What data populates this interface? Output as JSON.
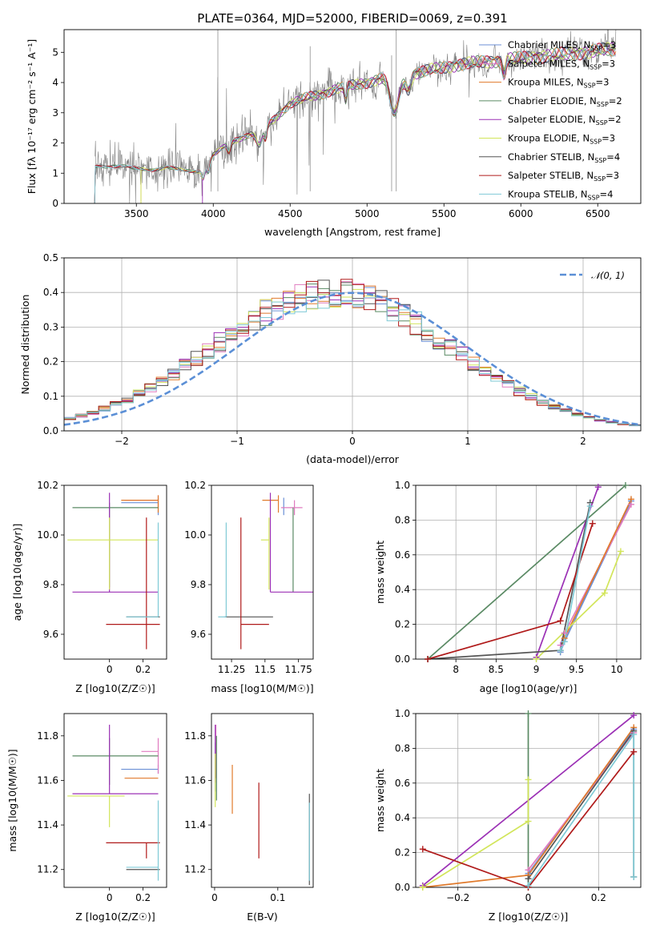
{
  "figure_title": "PLATE=0364, MJD=52000, FIBERID=0069, z=0.391",
  "colors": {
    "Chabrier MILES": "#6b8fd6",
    "Salpeter MILES": "#e07bbf",
    "Kroupa MILES": "#e07a2c",
    "Chabrier ELODIE": "#5a8a64",
    "Salpeter ELODIE": "#9b30b5",
    "Kroupa ELODIE": "#d2e55a",
    "Chabrier STELIB": "#555555",
    "Salpeter STELIB": "#b01a1a",
    "Kroupa STELIB": "#7fcad6",
    "data": "#808080",
    "gaussian": "#5b8fd6"
  },
  "chart_data": [
    {
      "type": "line",
      "title": "PLATE=0364, MJD=52000, FIBERID=0069, z=0.391",
      "xlabel": "wavelength [Angstrom, rest frame]",
      "ylabel": "Flux [fλ 10⁻¹⁷ erg cm⁻² s⁻¹ A⁻¹]",
      "xlim": [
        3030,
        6780
      ],
      "ylim": [
        0,
        5.75
      ],
      "xticks": [
        3500,
        4000,
        4500,
        5000,
        5500,
        6000,
        6500
      ],
      "yticks": [
        0,
        1,
        2,
        3,
        4,
        5
      ],
      "grid": false,
      "legend_position": "upper right",
      "legend": [
        "Chabrier MILES, N_SSP=3",
        "Salpeter MILES, N_SSP=3",
        "Kroupa MILES, N_SSP=3",
        "Chabrier ELODIE, N_SSP=2",
        "Salpeter ELODIE, N_SSP=2",
        "Kroupa ELODIE, N_SSP=3",
        "Chabrier STELIB, N_SSP=4",
        "Salpeter STELIB, N_SSP=3",
        "Kroupa STELIB, N_SSP=4"
      ],
      "model_continuum": [
        [
          3230,
          1.2
        ],
        [
          3400,
          1.25
        ],
        [
          3500,
          1.15
        ],
        [
          3600,
          1.1
        ],
        [
          3700,
          1.2
        ],
        [
          3800,
          1.1
        ],
        [
          3900,
          1.05
        ],
        [
          3950,
          1.1
        ],
        [
          4000,
          1.6
        ],
        [
          4100,
          2.0
        ],
        [
          4200,
          2.2
        ],
        [
          4300,
          2.4
        ],
        [
          4400,
          2.8
        ],
        [
          4500,
          3.3
        ],
        [
          4600,
          3.5
        ],
        [
          4700,
          3.6
        ],
        [
          4800,
          3.8
        ],
        [
          4900,
          3.9
        ],
        [
          5000,
          4.0
        ],
        [
          5100,
          4.15
        ],
        [
          5200,
          3.9
        ],
        [
          5300,
          4.3
        ],
        [
          5400,
          4.4
        ],
        [
          5500,
          4.5
        ],
        [
          5600,
          4.6
        ],
        [
          5700,
          4.65
        ],
        [
          5800,
          4.7
        ],
        [
          5900,
          4.75
        ],
        [
          6000,
          4.8
        ],
        [
          6100,
          4.85
        ],
        [
          6200,
          4.9
        ],
        [
          6300,
          4.95
        ],
        [
          6400,
          5.0
        ],
        [
          6500,
          5.05
        ],
        [
          6600,
          5.1
        ]
      ]
    },
    {
      "type": "step",
      "xlabel": "(data-model)/error",
      "ylabel": "Normed distribution",
      "xlim": [
        -2.5,
        2.5
      ],
      "ylim": [
        0,
        0.5
      ],
      "xticks": [
        -2,
        -1,
        0,
        1,
        2
      ],
      "yticks": [
        0.0,
        0.1,
        0.2,
        0.3,
        0.4,
        0.5
      ],
      "grid": true,
      "legend": [
        "𝒩(0, 1)"
      ],
      "legend_position": "upper right",
      "bin_width": 0.1
    },
    {
      "type": "errorbar",
      "xlabel": "Z [log10(Z/Z☉)]",
      "ylabel": "age  [log10(age/yr)]",
      "xlim": [
        -0.27,
        0.34
      ],
      "ylim": [
        9.5,
        10.2
      ],
      "xticks": [
        0.0,
        0.2
      ],
      "yticks": [
        9.6,
        9.8,
        10.0,
        10.2
      ],
      "points": [
        {
          "model": "Chabrier MILES",
          "x": 0.29,
          "y": 10.13,
          "xerr": [
            0.22,
            0.0
          ],
          "yerr": [
            0.05,
            0.02
          ]
        },
        {
          "model": "Salpeter MILES",
          "x": 0.29,
          "y": 10.14,
          "xerr": [
            0.2,
            0.0
          ],
          "yerr": [
            0.03,
            0.02
          ]
        },
        {
          "model": "Kroupa MILES",
          "x": 0.29,
          "y": 10.14,
          "xerr": [
            0.22,
            0.0
          ],
          "yerr": [
            0.05,
            0.02
          ]
        },
        {
          "model": "Chabrier ELODIE",
          "x": 0.0,
          "y": 10.11,
          "xerr": [
            0.22,
            0.29
          ],
          "yerr": [
            0.32,
            0.02
          ]
        },
        {
          "model": "Salpeter ELODIE",
          "x": 0.0,
          "y": 9.77,
          "xerr": [
            0.22,
            0.29
          ],
          "yerr": [
            0.0,
            0.4
          ]
        },
        {
          "model": "Kroupa ELODIE",
          "x": 0.0,
          "y": 9.98,
          "xerr": [
            0.25,
            0.29
          ],
          "yerr": [
            0.2,
            0.09
          ]
        },
        {
          "model": "Chabrier STELIB",
          "x": 0.1,
          "y": 9.67,
          "xerr": [
            0.0,
            0.2
          ],
          "yerr": [
            0.0,
            0.0
          ]
        },
        {
          "model": "Salpeter STELIB",
          "x": 0.22,
          "y": 9.64,
          "xerr": [
            0.24,
            0.08
          ],
          "yerr": [
            0.1,
            0.43
          ]
        },
        {
          "model": "Kroupa STELIB",
          "x": 0.29,
          "y": 9.67,
          "xerr": [
            0.19,
            0.0
          ],
          "yerr": [
            0.0,
            0.38
          ]
        }
      ]
    },
    {
      "type": "errorbar",
      "xlabel": "mass [log10(M/M☉)]",
      "ylabel": "",
      "xlim": [
        11.1,
        11.86
      ],
      "ylim": [
        9.5,
        10.2
      ],
      "xticks": [
        11.25,
        11.5,
        11.75
      ],
      "yticks": [
        9.6,
        9.8,
        10.0,
        10.2
      ],
      "points": [
        {
          "model": "Chabrier MILES",
          "x": 11.64,
          "y": 10.13,
          "xerr": [
            0.0,
            0.0
          ],
          "yerr": [
            0.05,
            0.02
          ]
        },
        {
          "model": "Salpeter MILES",
          "x": 11.72,
          "y": 10.11,
          "xerr": [
            0.1,
            0.06
          ],
          "yerr": [
            0.03,
            0.03
          ]
        },
        {
          "model": "Kroupa MILES",
          "x": 11.6,
          "y": 10.14,
          "xerr": [
            0.12,
            0.0
          ],
          "yerr": [
            0.05,
            0.02
          ]
        },
        {
          "model": "Chabrier ELODIE",
          "x": 11.71,
          "y": 10.11,
          "xerr": [
            0.0,
            0.0
          ],
          "yerr": [
            0.34,
            0.0
          ]
        },
        {
          "model": "Salpeter ELODIE",
          "x": 11.54,
          "y": 9.77,
          "xerr": [
            0.0,
            0.33
          ],
          "yerr": [
            0.0,
            0.4
          ]
        },
        {
          "model": "Kroupa ELODIE",
          "x": 11.53,
          "y": 9.98,
          "xerr": [
            0.06,
            0.0
          ],
          "yerr": [
            0.2,
            0.09
          ]
        },
        {
          "model": "Chabrier STELIB",
          "x": 11.2,
          "y": 9.67,
          "xerr": [
            0.0,
            0.36
          ],
          "yerr": [
            0.0,
            0.0
          ]
        },
        {
          "model": "Salpeter STELIB",
          "x": 11.32,
          "y": 9.64,
          "xerr": [
            0.0,
            0.21
          ],
          "yerr": [
            0.1,
            0.43
          ]
        },
        {
          "model": "Kroupa STELIB",
          "x": 11.21,
          "y": 9.67,
          "xerr": [
            0.06,
            0.0
          ],
          "yerr": [
            0.0,
            0.38
          ]
        }
      ]
    },
    {
      "type": "line",
      "xlabel": "age  [log10(age/yr)]",
      "ylabel": "mass weight",
      "xlim": [
        7.5,
        10.3
      ],
      "ylim": [
        0,
        1.0
      ],
      "xticks": [
        8.0,
        8.5,
        9.0,
        9.5,
        10.0
      ],
      "yticks": [
        0.0,
        0.2,
        0.4,
        0.6,
        0.8,
        1.0
      ],
      "grid": true,
      "series": [
        {
          "model": "Chabrier MILES",
          "x": [
            9.3,
            9.35,
            10.18
          ],
          "y": [
            0.04,
            0.1,
            0.91
          ]
        },
        {
          "model": "Salpeter MILES",
          "x": [
            9.3,
            9.35,
            10.18
          ],
          "y": [
            0.08,
            0.15,
            0.89
          ]
        },
        {
          "model": "Kroupa MILES",
          "x": [
            9.3,
            9.35,
            10.18
          ],
          "y": [
            0.05,
            0.12,
            0.92
          ]
        },
        {
          "model": "Chabrier ELODIE",
          "x": [
            7.65,
            10.11
          ],
          "y": [
            0.0,
            1.0
          ]
        },
        {
          "model": "Salpeter ELODIE",
          "x": [
            9.0,
            9.77
          ],
          "y": [
            0.01,
            0.99
          ]
        },
        {
          "model": "Kroupa ELODIE",
          "x": [
            9.0,
            9.85,
            10.05
          ],
          "y": [
            0.0,
            0.38,
            0.62
          ]
        },
        {
          "model": "Chabrier STELIB",
          "x": [
            7.65,
            9.3,
            9.67
          ],
          "y": [
            0.0,
            0.05,
            0.9
          ]
        },
        {
          "model": "Salpeter STELIB",
          "x": [
            7.65,
            9.3,
            9.7
          ],
          "y": [
            0.0,
            0.22,
            0.78
          ]
        },
        {
          "model": "Kroupa STELIB",
          "x": [
            9.3,
            9.35,
            9.67
          ],
          "y": [
            0.05,
            0.1,
            0.88
          ]
        }
      ]
    },
    {
      "type": "errorbar",
      "xlabel": "Z [log10(Z/Z☉)]",
      "ylabel": "mass [log10(M/M☉)]",
      "xlim": [
        -0.27,
        0.34
      ],
      "ylim": [
        11.12,
        11.9
      ],
      "xticks": [
        0.0,
        0.2
      ],
      "yticks": [
        11.2,
        11.4,
        11.6,
        11.8
      ],
      "points": [
        {
          "model": "Chabrier MILES",
          "x": 0.29,
          "y": 11.65,
          "xerr": [
            0.22,
            0.0
          ],
          "yerr": [
            0.02,
            0.02
          ]
        },
        {
          "model": "Salpeter MILES",
          "x": 0.29,
          "y": 11.73,
          "xerr": [
            0.1,
            0.0
          ],
          "yerr": [
            0.1,
            0.06
          ]
        },
        {
          "model": "Kroupa MILES",
          "x": 0.29,
          "y": 11.61,
          "xerr": [
            0.2,
            0.0
          ],
          "yerr": [
            0.0,
            0.0
          ]
        },
        {
          "model": "Chabrier ELODIE",
          "x": 0.0,
          "y": 11.71,
          "xerr": [
            0.22,
            0.29
          ],
          "yerr": [
            0.13,
            0.08
          ]
        },
        {
          "model": "Salpeter ELODIE",
          "x": 0.0,
          "y": 11.54,
          "xerr": [
            0.22,
            0.29
          ],
          "yerr": [
            0.0,
            0.31
          ]
        },
        {
          "model": "Kroupa ELODIE",
          "x": 0.0,
          "y": 11.53,
          "xerr": [
            0.25,
            0.09
          ],
          "yerr": [
            0.14,
            0.0
          ]
        },
        {
          "model": "Chabrier STELIB",
          "x": 0.1,
          "y": 11.2,
          "xerr": [
            0.0,
            0.2
          ],
          "yerr": [
            0.0,
            0.0
          ]
        },
        {
          "model": "Salpeter STELIB",
          "x": 0.22,
          "y": 11.32,
          "xerr": [
            0.24,
            0.08
          ],
          "yerr": [
            0.07,
            0.0
          ]
        },
        {
          "model": "Kroupa STELIB",
          "x": 0.29,
          "y": 11.21,
          "xerr": [
            0.19,
            0.0
          ],
          "yerr": [
            0.06,
            0.3
          ]
        }
      ]
    },
    {
      "type": "errorbar",
      "xlabel": "E(B-V)",
      "ylabel": "",
      "xlim": [
        -0.005,
        0.156
      ],
      "ylim": [
        11.12,
        11.9
      ],
      "xticks": [
        0.0,
        0.1
      ],
      "yticks": [
        11.2,
        11.4,
        11.6,
        11.8
      ],
      "points": [
        {
          "model": "Chabrier MILES",
          "x": 0.001,
          "y": 11.65,
          "xerr": [
            0,
            0
          ],
          "yerr": [
            0.1,
            0.12
          ]
        },
        {
          "model": "Salpeter MILES",
          "x": 0.002,
          "y": 11.73,
          "xerr": [
            0,
            0
          ],
          "yerr": [
            0.12,
            0.12
          ]
        },
        {
          "model": "Kroupa MILES",
          "x": 0.028,
          "y": 11.56,
          "xerr": [
            0,
            0
          ],
          "yerr": [
            0.11,
            0.11
          ]
        },
        {
          "model": "Chabrier ELODIE",
          "x": 0.003,
          "y": 11.72,
          "xerr": [
            0,
            0
          ],
          "yerr": [
            0.21,
            0.08
          ]
        },
        {
          "model": "Salpeter ELODIE",
          "x": 0.001,
          "y": 11.75,
          "xerr": [
            0,
            0
          ],
          "yerr": [
            0.16,
            0.1
          ]
        },
        {
          "model": "Kroupa ELODIE",
          "x": 0.001,
          "y": 11.6,
          "xerr": [
            0,
            0
          ],
          "yerr": [
            0.12,
            0.12
          ]
        },
        {
          "model": "Chabrier STELIB",
          "x": 0.15,
          "y": 11.33,
          "xerr": [
            0,
            0
          ],
          "yerr": [
            0.2,
            0.21
          ]
        },
        {
          "model": "Salpeter STELIB",
          "x": 0.07,
          "y": 11.42,
          "xerr": [
            0,
            0
          ],
          "yerr": [
            0.17,
            0.17
          ]
        },
        {
          "model": "Kroupa STELIB",
          "x": 0.15,
          "y": 11.32,
          "xerr": [
            0,
            0
          ],
          "yerr": [
            0.17,
            0.18
          ]
        }
      ]
    },
    {
      "type": "line",
      "xlabel": "Z [log10(Z/Z☉)]",
      "ylabel": "mass weight",
      "xlim": [
        -0.32,
        0.32
      ],
      "ylim": [
        0,
        1.0
      ],
      "xticks": [
        -0.2,
        0.0,
        0.2
      ],
      "yticks": [
        0.0,
        0.2,
        0.4,
        0.6,
        0.8,
        1.0
      ],
      "grid": true,
      "series": [
        {
          "model": "Chabrier MILES",
          "x": [
            0.0,
            0.3
          ],
          "y": [
            0.08,
            0.91
          ]
        },
        {
          "model": "Salpeter MILES",
          "x": [
            0.0,
            0.3
          ],
          "y": [
            0.1,
            0.89
          ]
        },
        {
          "model": "Kroupa MILES",
          "x": [
            -0.3,
            0.0,
            0.3
          ],
          "y": [
            0.0,
            0.07,
            0.92
          ]
        },
        {
          "model": "Chabrier ELODIE",
          "x": [
            0.0,
            0.0
          ],
          "y": [
            0.0,
            1.0
          ]
        },
        {
          "model": "Salpeter ELODIE",
          "x": [
            -0.3,
            0.3
          ],
          "y": [
            0.01,
            0.99
          ]
        },
        {
          "model": "Kroupa ELODIE",
          "x": [
            -0.3,
            0.0,
            0.0
          ],
          "y": [
            0.0,
            0.38,
            0.62
          ]
        },
        {
          "model": "Chabrier STELIB",
          "x": [
            0.0,
            0.3,
            0.3
          ],
          "y": [
            0.05,
            0.9,
            0.06
          ]
        },
        {
          "model": "Salpeter STELIB",
          "x": [
            -0.3,
            0.0,
            0.3
          ],
          "y": [
            0.22,
            0.0,
            0.78
          ]
        },
        {
          "model": "Kroupa STELIB",
          "x": [
            0.0,
            0.3,
            0.3
          ],
          "y": [
            0.01,
            0.88,
            0.06
          ]
        }
      ]
    }
  ]
}
